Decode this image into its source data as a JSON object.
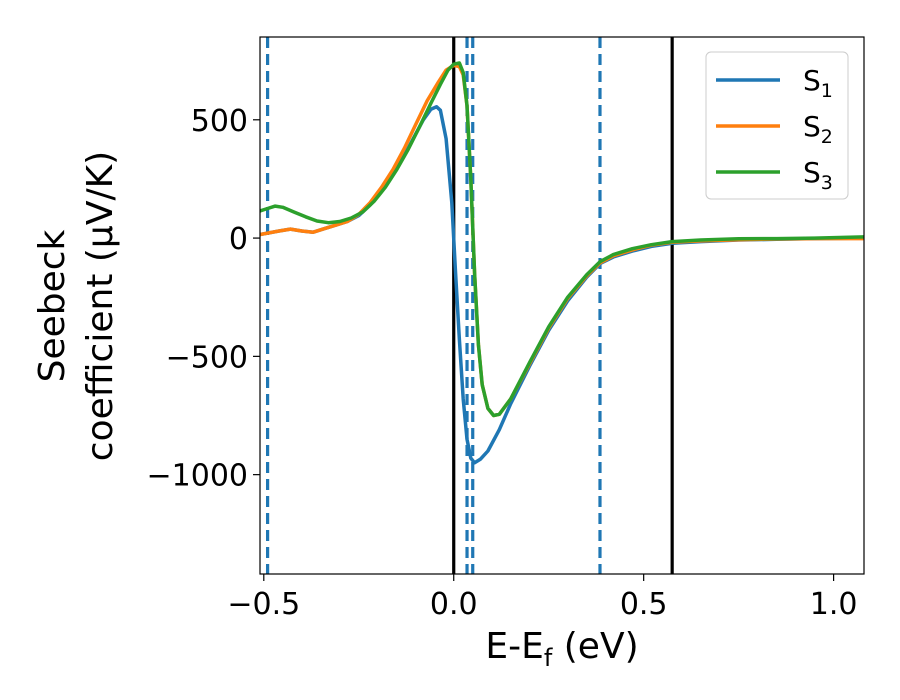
{
  "chart_data": {
    "type": "line",
    "xlabel": "E-E",
    "xlabel_sub": "f",
    "xlabel_unit": " (eV)",
    "ylabel_line1": "Seebeck",
    "ylabel_line2": "coefficient  (μV/K)",
    "xlim": [
      -0.51,
      1.08
    ],
    "ylim": [
      -1420,
      850
    ],
    "x_ticks": [
      -0.5,
      0.0,
      0.5,
      1.0
    ],
    "x_tick_labels": [
      "−0.5",
      "0.0",
      "0.5",
      "1.0"
    ],
    "y_ticks": [
      500,
      0,
      -500,
      -1000
    ],
    "y_tick_labels": [
      "500",
      "0",
      "−500",
      "−1000"
    ],
    "grid": false,
    "legend": {
      "position": "top-right",
      "entries": [
        {
          "base": "S",
          "sub": "1"
        },
        {
          "base": "S",
          "sub": "2"
        },
        {
          "base": "S",
          "sub": "3"
        }
      ]
    },
    "vlines_solid": {
      "color": "#000000",
      "x": [
        0.0,
        0.575
      ]
    },
    "vlines_dashed": {
      "color": "#1f77b4",
      "x": [
        -0.49,
        0.035,
        0.05,
        0.385
      ]
    },
    "series": [
      {
        "name": "S₁",
        "color": "#1f77b4",
        "points": [
          [
            -0.51,
            15
          ],
          [
            -0.46,
            30
          ],
          [
            -0.43,
            38
          ],
          [
            -0.4,
            30
          ],
          [
            -0.37,
            25
          ],
          [
            -0.34,
            40
          ],
          [
            -0.31,
            55
          ],
          [
            -0.28,
            70
          ],
          [
            -0.25,
            95
          ],
          [
            -0.22,
            140
          ],
          [
            -0.19,
            200
          ],
          [
            -0.16,
            270
          ],
          [
            -0.13,
            350
          ],
          [
            -0.1,
            440
          ],
          [
            -0.08,
            500
          ],
          [
            -0.06,
            545
          ],
          [
            -0.045,
            555
          ],
          [
            -0.035,
            540
          ],
          [
            -0.02,
            420
          ],
          [
            -0.005,
            150
          ],
          [
            0.005,
            -150
          ],
          [
            0.015,
            -430
          ],
          [
            0.025,
            -680
          ],
          [
            0.035,
            -850
          ],
          [
            0.045,
            -930
          ],
          [
            0.055,
            -950
          ],
          [
            0.07,
            -935
          ],
          [
            0.09,
            -900
          ],
          [
            0.12,
            -810
          ],
          [
            0.15,
            -700
          ],
          [
            0.2,
            -540
          ],
          [
            0.25,
            -390
          ],
          [
            0.3,
            -265
          ],
          [
            0.35,
            -165
          ],
          [
            0.385,
            -108
          ],
          [
            0.42,
            -80
          ],
          [
            0.47,
            -55
          ],
          [
            0.52,
            -35
          ],
          [
            0.575,
            -22
          ],
          [
            0.65,
            -15
          ],
          [
            0.75,
            -8
          ],
          [
            0.85,
            -5
          ],
          [
            0.95,
            -2
          ],
          [
            1.08,
            0
          ]
        ]
      },
      {
        "name": "S₂",
        "color": "#ff7f0e",
        "points": [
          [
            -0.51,
            15
          ],
          [
            -0.46,
            30
          ],
          [
            -0.43,
            38
          ],
          [
            -0.4,
            30
          ],
          [
            -0.37,
            25
          ],
          [
            -0.34,
            40
          ],
          [
            -0.31,
            55
          ],
          [
            -0.28,
            70
          ],
          [
            -0.25,
            100
          ],
          [
            -0.22,
            150
          ],
          [
            -0.19,
            215
          ],
          [
            -0.16,
            290
          ],
          [
            -0.13,
            380
          ],
          [
            -0.1,
            480
          ],
          [
            -0.07,
            580
          ],
          [
            -0.04,
            660
          ],
          [
            -0.02,
            710
          ],
          [
            0.0,
            730
          ],
          [
            0.015,
            725
          ],
          [
            0.025,
            690
          ],
          [
            0.035,
            560
          ],
          [
            0.045,
            250
          ],
          [
            0.055,
            -150
          ],
          [
            0.065,
            -450
          ],
          [
            0.075,
            -620
          ],
          [
            0.09,
            -720
          ],
          [
            0.105,
            -750
          ],
          [
            0.12,
            -745
          ],
          [
            0.15,
            -680
          ],
          [
            0.2,
            -530
          ],
          [
            0.25,
            -380
          ],
          [
            0.3,
            -255
          ],
          [
            0.35,
            -160
          ],
          [
            0.385,
            -105
          ],
          [
            0.42,
            -75
          ],
          [
            0.47,
            -50
          ],
          [
            0.52,
            -30
          ],
          [
            0.575,
            -18
          ],
          [
            0.65,
            -12
          ],
          [
            0.75,
            -7
          ],
          [
            0.85,
            -4
          ],
          [
            0.95,
            -2
          ],
          [
            1.08,
            -2
          ]
        ]
      },
      {
        "name": "S₃",
        "color": "#2ca02c",
        "points": [
          [
            -0.51,
            115
          ],
          [
            -0.49,
            125
          ],
          [
            -0.47,
            135
          ],
          [
            -0.45,
            130
          ],
          [
            -0.42,
            110
          ],
          [
            -0.39,
            90
          ],
          [
            -0.36,
            72
          ],
          [
            -0.33,
            65
          ],
          [
            -0.3,
            70
          ],
          [
            -0.27,
            85
          ],
          [
            -0.24,
            110
          ],
          [
            -0.21,
            155
          ],
          [
            -0.18,
            215
          ],
          [
            -0.15,
            290
          ],
          [
            -0.12,
            375
          ],
          [
            -0.09,
            470
          ],
          [
            -0.06,
            570
          ],
          [
            -0.035,
            650
          ],
          [
            -0.015,
            710
          ],
          [
            0.0,
            735
          ],
          [
            0.015,
            740
          ],
          [
            0.025,
            700
          ],
          [
            0.035,
            560
          ],
          [
            0.045,
            250
          ],
          [
            0.055,
            -150
          ],
          [
            0.065,
            -450
          ],
          [
            0.075,
            -620
          ],
          [
            0.09,
            -720
          ],
          [
            0.105,
            -750
          ],
          [
            0.12,
            -745
          ],
          [
            0.15,
            -680
          ],
          [
            0.2,
            -525
          ],
          [
            0.25,
            -375
          ],
          [
            0.3,
            -250
          ],
          [
            0.35,
            -155
          ],
          [
            0.385,
            -100
          ],
          [
            0.42,
            -70
          ],
          [
            0.47,
            -45
          ],
          [
            0.52,
            -28
          ],
          [
            0.575,
            -15
          ],
          [
            0.65,
            -8
          ],
          [
            0.75,
            -3
          ],
          [
            0.85,
            -2
          ],
          [
            0.95,
            0
          ],
          [
            1.08,
            5
          ]
        ]
      }
    ]
  }
}
